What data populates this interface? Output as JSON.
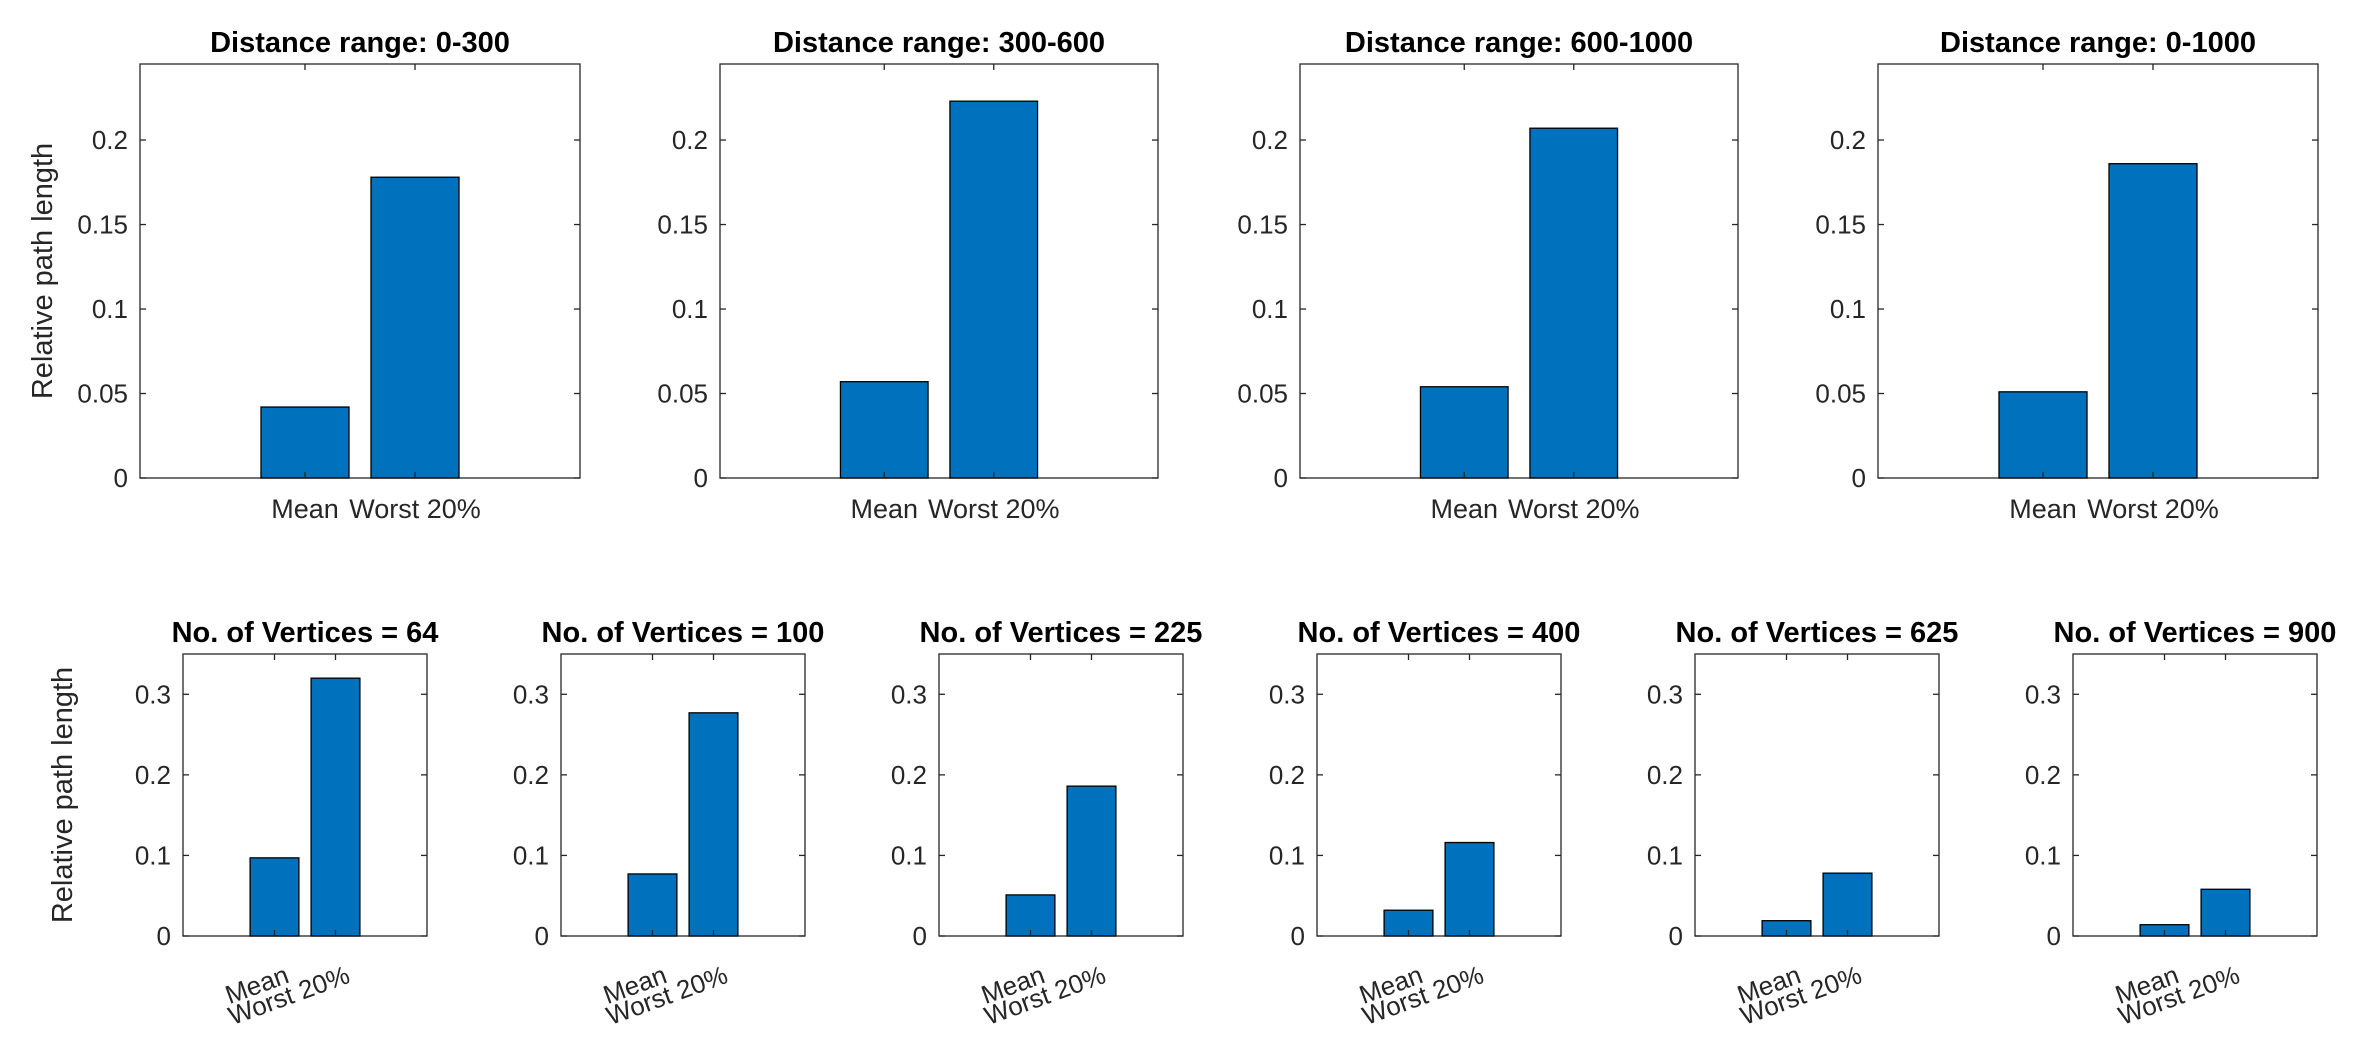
{
  "figure": {
    "bar_color": "#0072BD",
    "axis_color": "#262626"
  },
  "chart_data": [
    {
      "type": "bar",
      "title": "Distance range: 0-300",
      "ylabel": "Relative path length",
      "categories": [
        "Mean",
        "Worst 20%"
      ],
      "values": [
        0.042,
        0.178
      ],
      "ylim": [
        0,
        0.245
      ],
      "yticks": [
        0,
        0.05,
        0.1,
        0.15,
        0.2
      ],
      "ytick_labels": [
        "0",
        "0.05",
        "0.1",
        "0.15",
        "0.2"
      ]
    },
    {
      "type": "bar",
      "title": "Distance range: 300-600",
      "ylabel": "",
      "categories": [
        "Mean",
        "Worst 20%"
      ],
      "values": [
        0.057,
        0.223
      ],
      "ylim": [
        0,
        0.245
      ],
      "yticks": [
        0,
        0.05,
        0.1,
        0.15,
        0.2
      ],
      "ytick_labels": [
        "0",
        "0.05",
        "0.1",
        "0.15",
        "0.2"
      ]
    },
    {
      "type": "bar",
      "title": "Distance range: 600-1000",
      "ylabel": "",
      "categories": [
        "Mean",
        "Worst 20%"
      ],
      "values": [
        0.054,
        0.207
      ],
      "ylim": [
        0,
        0.245
      ],
      "yticks": [
        0,
        0.05,
        0.1,
        0.15,
        0.2
      ],
      "ytick_labels": [
        "0",
        "0.05",
        "0.1",
        "0.15",
        "0.2"
      ]
    },
    {
      "type": "bar",
      "title": "Distance range: 0-1000",
      "ylabel": "",
      "categories": [
        "Mean",
        "Worst 20%"
      ],
      "values": [
        0.051,
        0.186
      ],
      "ylim": [
        0,
        0.245
      ],
      "yticks": [
        0,
        0.05,
        0.1,
        0.15,
        0.2
      ],
      "ytick_labels": [
        "0",
        "0.05",
        "0.1",
        "0.15",
        "0.2"
      ]
    },
    {
      "type": "bar",
      "title": "No. of Vertices = 64",
      "ylabel": "Relative path length",
      "categories": [
        "Mean",
        "Worst 20%"
      ],
      "values": [
        0.097,
        0.32
      ],
      "ylim": [
        0,
        0.35
      ],
      "yticks": [
        0,
        0.1,
        0.2,
        0.3
      ],
      "ytick_labels": [
        "0",
        "0.1",
        "0.2",
        "0.3"
      ]
    },
    {
      "type": "bar",
      "title": "No. of Vertices = 100",
      "ylabel": "",
      "categories": [
        "Mean",
        "Worst 20%"
      ],
      "values": [
        0.077,
        0.277
      ],
      "ylim": [
        0,
        0.35
      ],
      "yticks": [
        0,
        0.1,
        0.2,
        0.3
      ],
      "ytick_labels": [
        "0",
        "0.1",
        "0.2",
        "0.3"
      ]
    },
    {
      "type": "bar",
      "title": "No. of Vertices = 225",
      "ylabel": "",
      "categories": [
        "Mean",
        "Worst 20%"
      ],
      "values": [
        0.051,
        0.186
      ],
      "ylim": [
        0,
        0.35
      ],
      "yticks": [
        0,
        0.1,
        0.2,
        0.3
      ],
      "ytick_labels": [
        "0",
        "0.1",
        "0.2",
        "0.3"
      ]
    },
    {
      "type": "bar",
      "title": "No. of Vertices = 400",
      "ylabel": "",
      "categories": [
        "Mean",
        "Worst 20%"
      ],
      "values": [
        0.032,
        0.116
      ],
      "ylim": [
        0,
        0.35
      ],
      "yticks": [
        0,
        0.1,
        0.2,
        0.3
      ],
      "ytick_labels": [
        "0",
        "0.1",
        "0.2",
        "0.3"
      ]
    },
    {
      "type": "bar",
      "title": "No. of Vertices = 625",
      "ylabel": "",
      "categories": [
        "Mean",
        "Worst 20%"
      ],
      "values": [
        0.019,
        0.078
      ],
      "ylim": [
        0,
        0.35
      ],
      "yticks": [
        0,
        0.1,
        0.2,
        0.3
      ],
      "ytick_labels": [
        "0",
        "0.1",
        "0.2",
        "0.3"
      ]
    },
    {
      "type": "bar",
      "title": "No. of Vertices = 900",
      "ylabel": "",
      "categories": [
        "Mean",
        "Worst 20%"
      ],
      "values": [
        0.014,
        0.058
      ],
      "ylim": [
        0,
        0.35
      ],
      "yticks": [
        0,
        0.1,
        0.2,
        0.3
      ],
      "ytick_labels": [
        "0",
        "0.1",
        "0.2",
        "0.3"
      ]
    }
  ]
}
